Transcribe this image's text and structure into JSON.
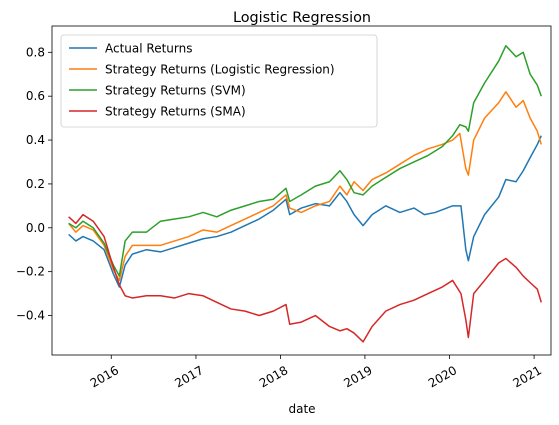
{
  "chart_data": {
    "type": "line",
    "title": "Logistic Regression",
    "xlabel": "date",
    "ylabel": "",
    "xlim": [
      "2015-04-20",
      "2021-03-15"
    ],
    "ylim": [
      -0.58,
      0.92
    ],
    "xticks": [
      {
        "date": "2016-01-01",
        "label": "2016"
      },
      {
        "date": "2017-01-01",
        "label": "2017"
      },
      {
        "date": "2018-01-01",
        "label": "2018"
      },
      {
        "date": "2019-01-01",
        "label": "2019"
      },
      {
        "date": "2020-01-01",
        "label": "2020"
      },
      {
        "date": "2021-01-01",
        "label": "2021"
      }
    ],
    "yticks": [
      {
        "value": -0.4,
        "label": "−0.4"
      },
      {
        "value": -0.2,
        "label": "−0.2"
      },
      {
        "value": 0.0,
        "label": "0.0"
      },
      {
        "value": 0.2,
        "label": "0.2"
      },
      {
        "value": 0.4,
        "label": "0.4"
      },
      {
        "value": 0.6,
        "label": "0.6"
      },
      {
        "value": 0.8,
        "label": "0.8"
      }
    ],
    "grid": false,
    "legend_position": "upper-left",
    "series": [
      {
        "name": "Actual Returns",
        "color": "#1f77b4",
        "points": [
          [
            "2015-07-01",
            -0.03
          ],
          [
            "2015-08-01",
            -0.06
          ],
          [
            "2015-09-01",
            -0.04
          ],
          [
            "2015-10-15",
            -0.06
          ],
          [
            "2015-12-01",
            -0.1
          ],
          [
            "2016-01-10",
            -0.21
          ],
          [
            "2016-02-05",
            -0.27
          ],
          [
            "2016-03-01",
            -0.17
          ],
          [
            "2016-04-01",
            -0.12
          ],
          [
            "2016-06-01",
            -0.1
          ],
          [
            "2016-08-01",
            -0.11
          ],
          [
            "2016-10-01",
            -0.09
          ],
          [
            "2016-12-01",
            -0.07
          ],
          [
            "2017-02-01",
            -0.05
          ],
          [
            "2017-04-01",
            -0.04
          ],
          [
            "2017-06-01",
            -0.02
          ],
          [
            "2017-08-01",
            0.01
          ],
          [
            "2017-10-01",
            0.04
          ],
          [
            "2017-12-01",
            0.08
          ],
          [
            "2018-01-25",
            0.13
          ],
          [
            "2018-02-10",
            0.06
          ],
          [
            "2018-04-01",
            0.09
          ],
          [
            "2018-06-01",
            0.11
          ],
          [
            "2018-08-01",
            0.1
          ],
          [
            "2018-09-15",
            0.16
          ],
          [
            "2018-10-15",
            0.12
          ],
          [
            "2018-11-15",
            0.06
          ],
          [
            "2018-12-24",
            0.01
          ],
          [
            "2019-02-01",
            0.06
          ],
          [
            "2019-04-01",
            0.1
          ],
          [
            "2019-06-01",
            0.07
          ],
          [
            "2019-08-01",
            0.09
          ],
          [
            "2019-09-15",
            0.06
          ],
          [
            "2019-11-01",
            0.07
          ],
          [
            "2020-01-15",
            0.1
          ],
          [
            "2020-02-20",
            0.1
          ],
          [
            "2020-03-12",
            -0.1
          ],
          [
            "2020-03-23",
            -0.15
          ],
          [
            "2020-04-15",
            -0.04
          ],
          [
            "2020-06-01",
            0.06
          ],
          [
            "2020-08-01",
            0.14
          ],
          [
            "2020-09-01",
            0.22
          ],
          [
            "2020-10-15",
            0.21
          ],
          [
            "2020-11-15",
            0.26
          ],
          [
            "2020-12-15",
            0.32
          ],
          [
            "2021-01-15",
            0.38
          ],
          [
            "2021-02-01",
            0.42
          ]
        ]
      },
      {
        "name": "Strategy Returns (Logistic Regression)",
        "color": "#ff7f0e",
        "points": [
          [
            "2015-07-01",
            0.02
          ],
          [
            "2015-08-01",
            -0.02
          ],
          [
            "2015-09-01",
            0.01
          ],
          [
            "2015-10-15",
            -0.01
          ],
          [
            "2015-12-01",
            -0.08
          ],
          [
            "2016-01-10",
            -0.19
          ],
          [
            "2016-02-05",
            -0.24
          ],
          [
            "2016-03-01",
            -0.13
          ],
          [
            "2016-04-01",
            -0.08
          ],
          [
            "2016-06-01",
            -0.08
          ],
          [
            "2016-08-01",
            -0.08
          ],
          [
            "2016-10-01",
            -0.06
          ],
          [
            "2016-12-01",
            -0.04
          ],
          [
            "2017-02-01",
            -0.01
          ],
          [
            "2017-04-01",
            -0.02
          ],
          [
            "2017-06-01",
            0.01
          ],
          [
            "2017-08-01",
            0.04
          ],
          [
            "2017-10-01",
            0.07
          ],
          [
            "2017-12-01",
            0.1
          ],
          [
            "2018-01-25",
            0.15
          ],
          [
            "2018-02-10",
            0.09
          ],
          [
            "2018-04-01",
            0.07
          ],
          [
            "2018-06-01",
            0.1
          ],
          [
            "2018-08-01",
            0.12
          ],
          [
            "2018-09-15",
            0.19
          ],
          [
            "2018-10-15",
            0.15
          ],
          [
            "2018-11-15",
            0.21
          ],
          [
            "2018-12-24",
            0.17
          ],
          [
            "2019-02-01",
            0.22
          ],
          [
            "2019-04-01",
            0.25
          ],
          [
            "2019-06-01",
            0.29
          ],
          [
            "2019-08-01",
            0.33
          ],
          [
            "2019-10-01",
            0.36
          ],
          [
            "2019-12-01",
            0.38
          ],
          [
            "2020-01-15",
            0.4
          ],
          [
            "2020-02-15",
            0.43
          ],
          [
            "2020-03-12",
            0.27
          ],
          [
            "2020-03-23",
            0.24
          ],
          [
            "2020-04-15",
            0.4
          ],
          [
            "2020-06-01",
            0.5
          ],
          [
            "2020-08-01",
            0.57
          ],
          [
            "2020-09-01",
            0.62
          ],
          [
            "2020-10-15",
            0.55
          ],
          [
            "2020-11-15",
            0.58
          ],
          [
            "2020-12-15",
            0.5
          ],
          [
            "2021-01-15",
            0.44
          ],
          [
            "2021-02-01",
            0.38
          ]
        ]
      },
      {
        "name": "Strategy Returns (SVM)",
        "color": "#2ca02c",
        "points": [
          [
            "2015-07-01",
            0.02
          ],
          [
            "2015-08-01",
            0.0
          ],
          [
            "2015-09-01",
            0.03
          ],
          [
            "2015-10-15",
            0.0
          ],
          [
            "2015-12-01",
            -0.07
          ],
          [
            "2016-01-10",
            -0.17
          ],
          [
            "2016-02-05",
            -0.22
          ],
          [
            "2016-03-01",
            -0.06
          ],
          [
            "2016-04-01",
            -0.02
          ],
          [
            "2016-06-01",
            -0.02
          ],
          [
            "2016-08-01",
            0.03
          ],
          [
            "2016-10-01",
            0.04
          ],
          [
            "2016-12-01",
            0.05
          ],
          [
            "2017-02-01",
            0.07
          ],
          [
            "2017-04-01",
            0.05
          ],
          [
            "2017-06-01",
            0.08
          ],
          [
            "2017-08-01",
            0.1
          ],
          [
            "2017-10-01",
            0.12
          ],
          [
            "2017-12-01",
            0.13
          ],
          [
            "2018-01-25",
            0.18
          ],
          [
            "2018-02-10",
            0.12
          ],
          [
            "2018-04-01",
            0.15
          ],
          [
            "2018-06-01",
            0.19
          ],
          [
            "2018-08-01",
            0.21
          ],
          [
            "2018-09-15",
            0.26
          ],
          [
            "2018-10-15",
            0.22
          ],
          [
            "2018-11-15",
            0.16
          ],
          [
            "2018-12-24",
            0.15
          ],
          [
            "2019-02-01",
            0.19
          ],
          [
            "2019-04-01",
            0.23
          ],
          [
            "2019-06-01",
            0.27
          ],
          [
            "2019-08-01",
            0.3
          ],
          [
            "2019-10-01",
            0.33
          ],
          [
            "2019-12-01",
            0.37
          ],
          [
            "2020-01-15",
            0.42
          ],
          [
            "2020-02-15",
            0.47
          ],
          [
            "2020-03-12",
            0.46
          ],
          [
            "2020-03-23",
            0.44
          ],
          [
            "2020-04-15",
            0.57
          ],
          [
            "2020-06-01",
            0.66
          ],
          [
            "2020-08-01",
            0.76
          ],
          [
            "2020-09-01",
            0.83
          ],
          [
            "2020-10-15",
            0.78
          ],
          [
            "2020-11-15",
            0.8
          ],
          [
            "2020-12-15",
            0.7
          ],
          [
            "2021-01-15",
            0.65
          ],
          [
            "2021-02-01",
            0.6
          ]
        ]
      },
      {
        "name": "Strategy Returns (SMA)",
        "color": "#d62728",
        "points": [
          [
            "2015-07-01",
            0.05
          ],
          [
            "2015-08-01",
            0.02
          ],
          [
            "2015-09-01",
            0.06
          ],
          [
            "2015-10-15",
            0.03
          ],
          [
            "2015-12-01",
            -0.04
          ],
          [
            "2016-01-10",
            -0.18
          ],
          [
            "2016-02-05",
            -0.26
          ],
          [
            "2016-03-01",
            -0.31
          ],
          [
            "2016-04-01",
            -0.32
          ],
          [
            "2016-06-01",
            -0.31
          ],
          [
            "2016-08-01",
            -0.31
          ],
          [
            "2016-10-01",
            -0.32
          ],
          [
            "2016-12-01",
            -0.3
          ],
          [
            "2017-02-01",
            -0.31
          ],
          [
            "2017-04-01",
            -0.34
          ],
          [
            "2017-06-01",
            -0.37
          ],
          [
            "2017-08-01",
            -0.38
          ],
          [
            "2017-10-01",
            -0.4
          ],
          [
            "2017-12-01",
            -0.38
          ],
          [
            "2018-01-25",
            -0.35
          ],
          [
            "2018-02-10",
            -0.44
          ],
          [
            "2018-04-01",
            -0.43
          ],
          [
            "2018-06-01",
            -0.4
          ],
          [
            "2018-08-01",
            -0.45
          ],
          [
            "2018-09-15",
            -0.47
          ],
          [
            "2018-10-15",
            -0.46
          ],
          [
            "2018-11-15",
            -0.48
          ],
          [
            "2018-12-24",
            -0.52
          ],
          [
            "2019-02-01",
            -0.45
          ],
          [
            "2019-04-01",
            -0.38
          ],
          [
            "2019-06-01",
            -0.35
          ],
          [
            "2019-08-01",
            -0.33
          ],
          [
            "2019-10-01",
            -0.3
          ],
          [
            "2019-12-01",
            -0.27
          ],
          [
            "2020-01-15",
            -0.24
          ],
          [
            "2020-02-20",
            -0.3
          ],
          [
            "2020-03-12",
            -0.42
          ],
          [
            "2020-03-23",
            -0.5
          ],
          [
            "2020-04-15",
            -0.3
          ],
          [
            "2020-06-01",
            -0.24
          ],
          [
            "2020-08-01",
            -0.16
          ],
          [
            "2020-09-01",
            -0.14
          ],
          [
            "2020-10-15",
            -0.18
          ],
          [
            "2020-11-15",
            -0.22
          ],
          [
            "2020-12-15",
            -0.25
          ],
          [
            "2021-01-15",
            -0.28
          ],
          [
            "2021-02-01",
            -0.34
          ]
        ]
      }
    ]
  }
}
